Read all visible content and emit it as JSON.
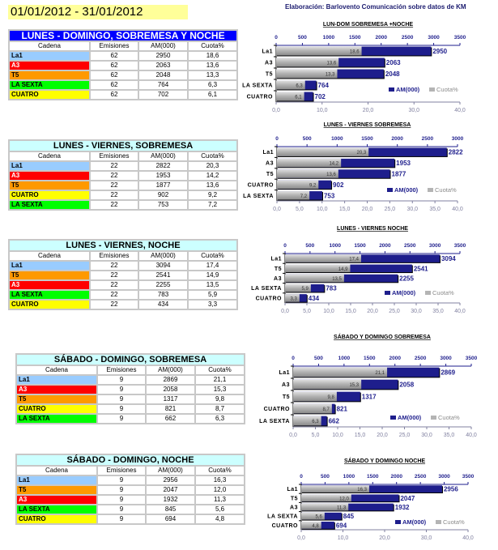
{
  "header": {
    "date_range": "01/01/2012 - 31/01/2012",
    "credit": "Elaboración: Barlovento Comunicación sobre datos de KM"
  },
  "columns": [
    "Cadena",
    "Emisiones",
    "AM(000)",
    "Cuota%"
  ],
  "channel_colors": {
    "La1": "#99ccff",
    "A3": "#ff0000",
    "T5": "#ff9900",
    "LA SEXTA": "#00ff00",
    "CUATRO": "#ffff00"
  },
  "tables": [
    {
      "title": "LUNES - DOMINGO, SOBREMESA Y NOCHE",
      "rows": [
        [
          "La1",
          "62",
          "2950",
          "18,6"
        ],
        [
          "A3",
          "62",
          "2063",
          "13,6"
        ],
        [
          "T5",
          "62",
          "2048",
          "13,3"
        ],
        [
          "LA SEXTA",
          "62",
          "764",
          "6,3"
        ],
        [
          "CUATRO",
          "62",
          "702",
          "6,1"
        ]
      ]
    },
    {
      "title": "LUNES - VIERNES, SOBREMESA",
      "rows": [
        [
          "La1",
          "22",
          "2822",
          "20,3"
        ],
        [
          "A3",
          "22",
          "1953",
          "14,2"
        ],
        [
          "T5",
          "22",
          "1877",
          "13,6"
        ],
        [
          "CUATRO",
          "22",
          "902",
          "9,2"
        ],
        [
          "LA SEXTA",
          "22",
          "753",
          "7,2"
        ]
      ]
    },
    {
      "title": "LUNES - VIERNES, NOCHE",
      "rows": [
        [
          "La1",
          "22",
          "3094",
          "17,4"
        ],
        [
          "T5",
          "22",
          "2541",
          "14,9"
        ],
        [
          "A3",
          "22",
          "2255",
          "13,5"
        ],
        [
          "LA SEXTA",
          "22",
          "783",
          "5,9"
        ],
        [
          "CUATRO",
          "22",
          "434",
          "3,3"
        ]
      ]
    },
    {
      "title": "SÁBADO - DOMINGO, SOBREMESA",
      "rows": [
        [
          "La1",
          "9",
          "2869",
          "21,1"
        ],
        [
          "A3",
          "9",
          "2058",
          "15,3"
        ],
        [
          "T5",
          "9",
          "1317",
          "9,8"
        ],
        [
          "CUATRO",
          "9",
          "821",
          "8,7"
        ],
        [
          "LA SEXTA",
          "9",
          "662",
          "6,3"
        ]
      ]
    },
    {
      "title": "SÁBADO - DOMINGO, NOCHE",
      "rows": [
        [
          "La1",
          "9",
          "2956",
          "16,3"
        ],
        [
          "T5",
          "9",
          "2047",
          "12,0"
        ],
        [
          "A3",
          "9",
          "1932",
          "11,3"
        ],
        [
          "LA SEXTA",
          "9",
          "845",
          "5,6"
        ],
        [
          "CUATRO",
          "9",
          "694",
          "4,8"
        ]
      ]
    }
  ],
  "chart_data": [
    {
      "type": "bar",
      "orientation": "horizontal",
      "title": "LUN-DOM SOBREMESA +NOCHE",
      "categories": [
        "La1",
        "A3",
        "T5",
        "LA SEXTA",
        "CUATRO"
      ],
      "series": [
        {
          "name": "AM(000)",
          "values": [
            2950,
            2063,
            2048,
            764,
            702
          ],
          "axis": "top",
          "xlim": [
            0,
            3500
          ],
          "ticks": [
            0,
            500,
            1000,
            1500,
            2000,
            2500,
            3000,
            3500
          ],
          "color": "#1e1e8c"
        },
        {
          "name": "Cuota%",
          "values": [
            18.6,
            13.6,
            13.3,
            6.3,
            6.1
          ],
          "axis": "bottom",
          "xlim": [
            0,
            40
          ],
          "ticks": [
            "0,0",
            "10,0",
            "20,0",
            "30,0",
            "40,0"
          ],
          "color": "#b4b4b4"
        }
      ],
      "legend": "bottom-right"
    },
    {
      "type": "bar",
      "orientation": "horizontal",
      "title": "LUNES - VIERNES SOBREMESA",
      "categories": [
        "La1",
        "A3",
        "T5",
        "CUATRO",
        "LA SEXTA"
      ],
      "series": [
        {
          "name": "AM(000)",
          "values": [
            2822,
            1953,
            1877,
            902,
            753
          ],
          "axis": "top",
          "xlim": [
            0,
            3000
          ],
          "ticks": [
            0,
            500,
            1000,
            1500,
            2000,
            2500,
            3000
          ],
          "color": "#1e1e8c"
        },
        {
          "name": "Cuota%",
          "values": [
            20.3,
            14.2,
            13.6,
            9.2,
            7.2
          ],
          "axis": "bottom",
          "xlim": [
            0,
            40
          ],
          "ticks": [
            "0,0",
            "5,0",
            "10,0",
            "15,0",
            "20,0",
            "25,0",
            "30,0",
            "35,0",
            "40,0"
          ],
          "color": "#b4b4b4"
        }
      ],
      "legend": "bottom-right"
    },
    {
      "type": "bar",
      "orientation": "horizontal",
      "title": "LUNES - VIERNES  NOCHE",
      "categories": [
        "La1",
        "T5",
        "A3",
        "LA SEXTA",
        "CUATRO"
      ],
      "series": [
        {
          "name": "AM(000)",
          "values": [
            3094,
            2541,
            2255,
            783,
            434
          ],
          "axis": "top",
          "xlim": [
            0,
            3500
          ],
          "ticks": [
            0,
            500,
            1000,
            1500,
            2000,
            2500,
            3000,
            3500
          ],
          "color": "#1e1e8c"
        },
        {
          "name": "Cuota%",
          "values": [
            17.4,
            14.9,
            13.5,
            5.9,
            3.3
          ],
          "axis": "bottom",
          "xlim": [
            0,
            40
          ],
          "ticks": [
            "0,0",
            "5,0",
            "10,0",
            "15,0",
            "20,0",
            "25,0",
            "30,0",
            "35,0",
            "40,0"
          ],
          "color": "#b4b4b4"
        }
      ],
      "legend": "bottom-right"
    },
    {
      "type": "bar",
      "orientation": "horizontal",
      "title": "SÁBADO Y DOMINGO SOBREMESA",
      "categories": [
        "La1",
        "A3",
        "T5",
        "CUATRO",
        "LA SEXTA"
      ],
      "series": [
        {
          "name": "AM(000)",
          "values": [
            2869,
            2058,
            1317,
            821,
            662
          ],
          "axis": "top",
          "xlim": [
            0,
            3500
          ],
          "ticks": [
            0,
            500,
            1000,
            1500,
            2000,
            2500,
            3000,
            3500
          ],
          "color": "#1e1e8c"
        },
        {
          "name": "Cuota%",
          "values": [
            21.1,
            15.3,
            9.8,
            8.7,
            6.3
          ],
          "axis": "bottom",
          "xlim": [
            0,
            40
          ],
          "ticks": [
            "0,0",
            "5,0",
            "10,0",
            "15,0",
            "20,0",
            "25,0",
            "30,0",
            "35,0",
            "40,0"
          ],
          "color": "#b4b4b4"
        }
      ],
      "legend": "bottom-right"
    },
    {
      "type": "bar",
      "orientation": "horizontal",
      "title": "SÁBADO Y DOMINGO  NOCHE",
      "categories": [
        "La1",
        "T5",
        "A3",
        "LA SEXTA",
        "CUATRO"
      ],
      "series": [
        {
          "name": "AM(000)",
          "values": [
            2956,
            2047,
            1932,
            845,
            694
          ],
          "axis": "top",
          "xlim": [
            0,
            3500
          ],
          "ticks": [
            0,
            500,
            1000,
            1500,
            2000,
            2500,
            3000,
            3500
          ],
          "color": "#1e1e8c"
        },
        {
          "name": "Cuota%",
          "values": [
            16.3,
            12.0,
            11.3,
            5.6,
            4.8
          ],
          "axis": "bottom",
          "xlim": [
            0,
            40
          ],
          "ticks": [
            "0,0",
            "10,0",
            "20,0",
            "30,0",
            "40,0"
          ],
          "color": "#b4b4b4"
        }
      ],
      "legend": "bottom-right"
    }
  ]
}
